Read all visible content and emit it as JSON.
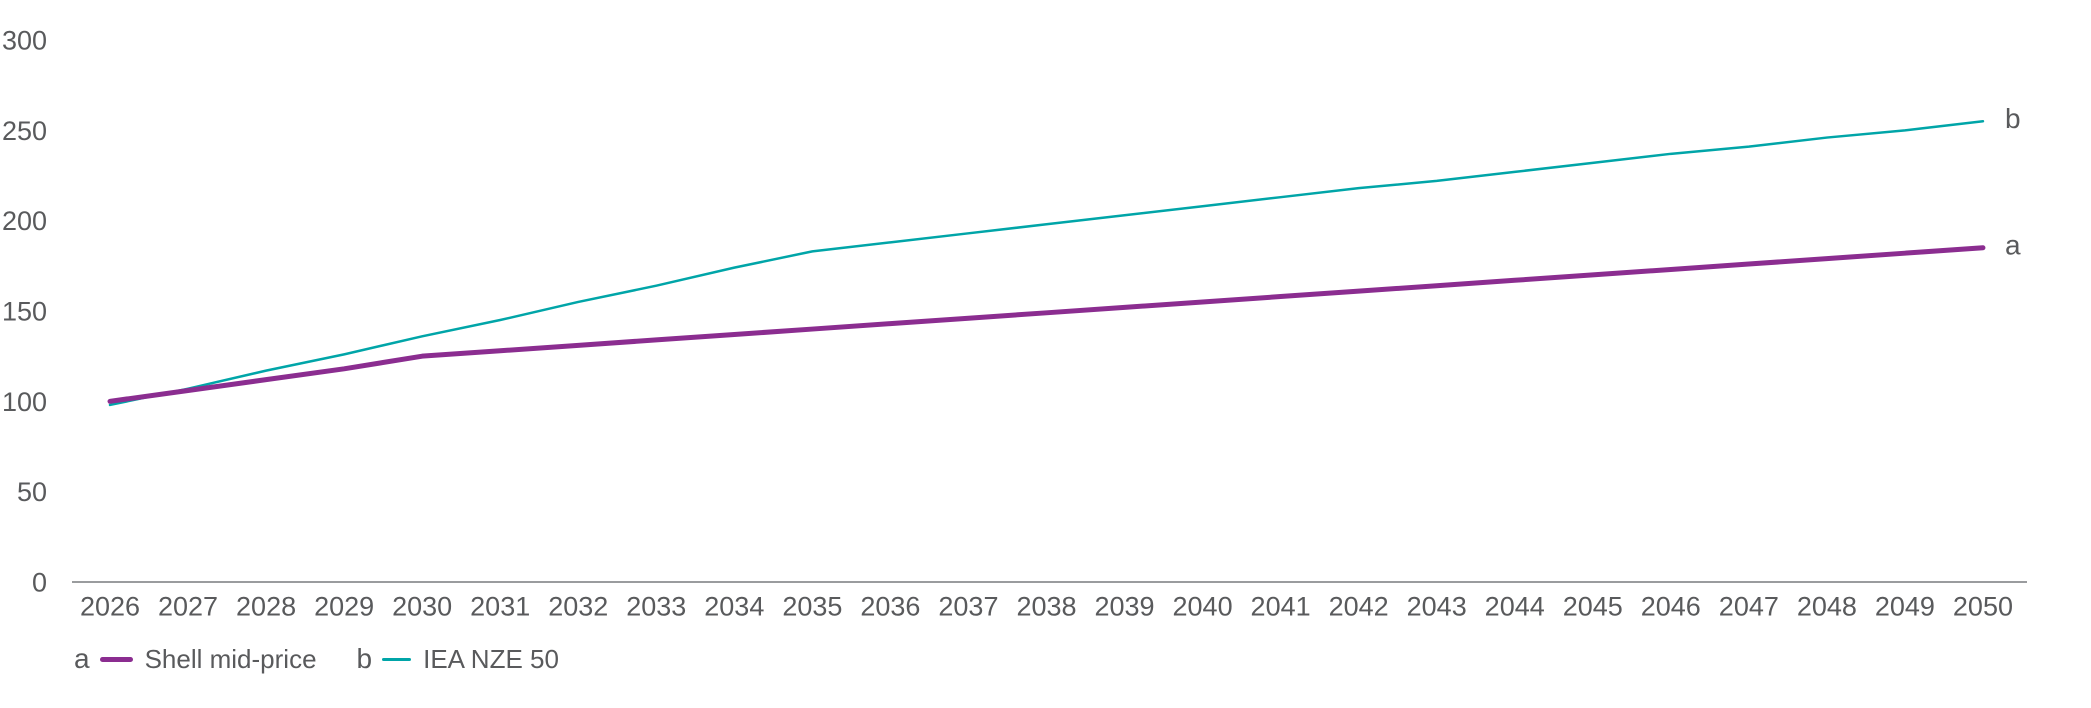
{
  "chart_data": {
    "type": "line",
    "title": "",
    "xlabel": "",
    "ylabel": "",
    "categories": [
      "2026",
      "2027",
      "2028",
      "2029",
      "2030",
      "2031",
      "2032",
      "2033",
      "2034",
      "2035",
      "2036",
      "2037",
      "2038",
      "2039",
      "2040",
      "2041",
      "2042",
      "2043",
      "2044",
      "2045",
      "2046",
      "2047",
      "2048",
      "2049",
      "2050"
    ],
    "yticks": [
      0,
      50,
      100,
      150,
      200,
      250,
      300
    ],
    "ylim": [
      0,
      300
    ],
    "grid": false,
    "legend_position": "bottom-left",
    "series": [
      {
        "name": "Shell mid-price",
        "key": "a",
        "color": "#8B2D90",
        "stroke_width": 5,
        "values": [
          100,
          106,
          112,
          118,
          125,
          128,
          131,
          134,
          137,
          140,
          143,
          146,
          149,
          152,
          155,
          158,
          161,
          164,
          167,
          170,
          173,
          176,
          179,
          182,
          185
        ]
      },
      {
        "name": "IEA NZE 50",
        "key": "b",
        "color": "#00A5A8",
        "stroke_width": 2.5,
        "values": [
          98,
          107,
          117,
          126,
          136,
          145,
          155,
          164,
          174,
          183,
          188,
          193,
          198,
          203,
          208,
          213,
          218,
          222,
          227,
          232,
          237,
          241,
          246,
          250,
          255
        ]
      }
    ],
    "colors": {
      "text": "#595A5C",
      "axis_line": "#9A9C9E",
      "background": "#FFFFFF"
    }
  }
}
